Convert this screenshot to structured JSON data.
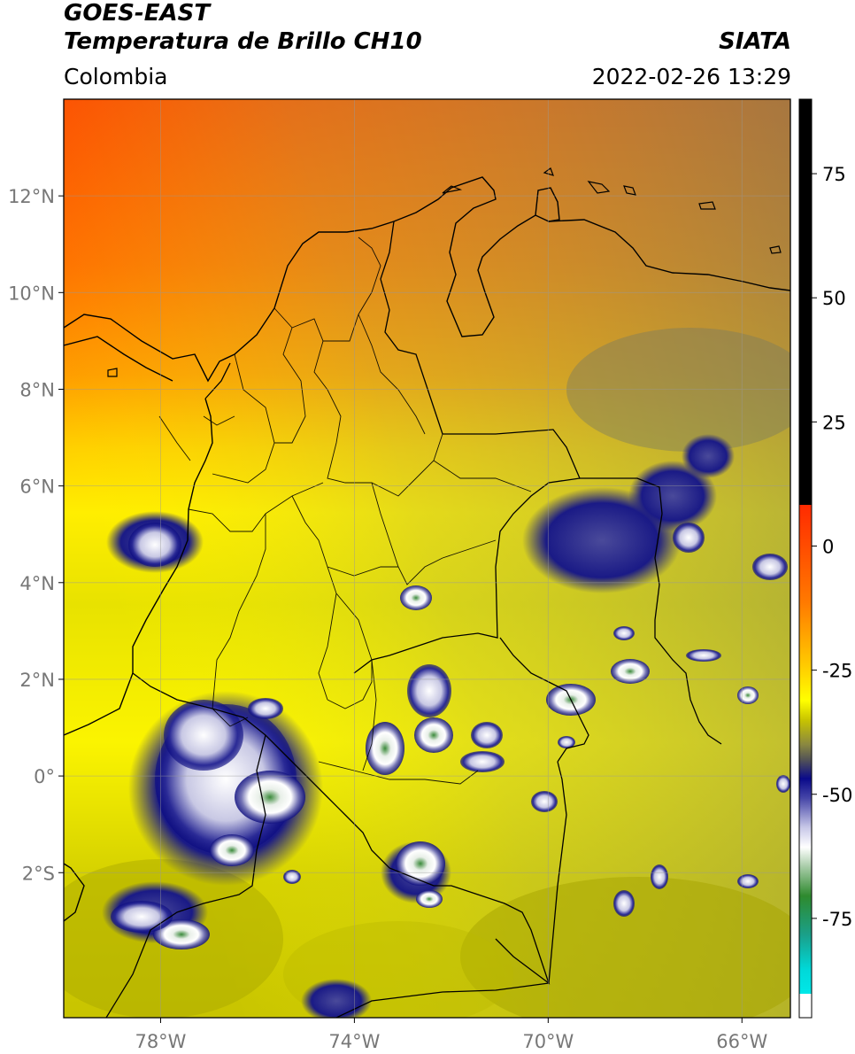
{
  "header": {
    "satellite": "GOES-EAST",
    "product": "Temperatura de Brillo CH10",
    "organization": "SIATA",
    "region": "Colombia",
    "timestamp": "2022-02-26 13:29"
  },
  "map": {
    "lon_range": [
      -80,
      -65
    ],
    "lat_range": [
      -5,
      14
    ],
    "lon_ticks": [
      {
        "value": -78,
        "label": "78°W"
      },
      {
        "value": -74,
        "label": "74°W"
      },
      {
        "value": -70,
        "label": "70°W"
      },
      {
        "value": -66,
        "label": "66°W"
      }
    ],
    "lat_ticks": [
      {
        "value": 12,
        "label": "12°N"
      },
      {
        "value": 10,
        "label": "10°N"
      },
      {
        "value": 8,
        "label": "8°N"
      },
      {
        "value": 6,
        "label": "6°N"
      },
      {
        "value": 4,
        "label": "4°N"
      },
      {
        "value": 2,
        "label": "2°N"
      },
      {
        "value": 0,
        "label": "0°"
      },
      {
        "value": -2,
        "label": "2°S"
      }
    ],
    "gridlines": true
  },
  "colorbar": {
    "range": [
      -95,
      90
    ],
    "ticks": [
      {
        "value": 75,
        "label": "75"
      },
      {
        "value": 50,
        "label": "50"
      },
      {
        "value": 25,
        "label": "25"
      },
      {
        "value": 0,
        "label": "0"
      },
      {
        "value": -25,
        "label": "-25"
      },
      {
        "value": -50,
        "label": "-50"
      },
      {
        "value": -75,
        "label": "-75"
      }
    ],
    "colors": {
      "black": "#000000",
      "red": "#ff2a00",
      "orange": "#ff8c00",
      "yellow": "#ffff00",
      "olive": "#a8a600",
      "gray": "#555555",
      "navy": "#0a0a8a",
      "white": "#ffffff",
      "green": "#2e8a2e",
      "teal": "#19a89a",
      "cyan": "#00e0e0"
    }
  }
}
